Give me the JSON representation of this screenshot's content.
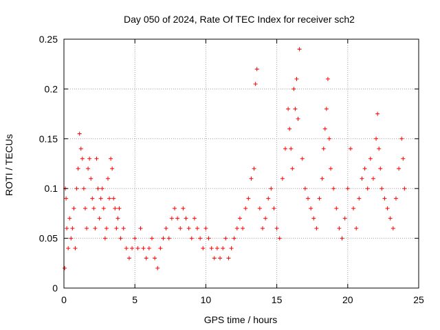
{
  "chart_data": {
    "type": "scatter",
    "title": "Day 050 of 2024, Rate Of TEC Index for receiver sch2",
    "xlabel": "GPS time / hours",
    "ylabel": "ROTI / TECUs",
    "xlim": [
      0,
      25
    ],
    "ylim": [
      0,
      0.25
    ],
    "x_ticks": [
      "0",
      "5",
      "10",
      "15",
      "20",
      "25"
    ],
    "y_ticks": [
      "0",
      "0.05",
      "0.1",
      "0.15",
      "0.2",
      "0.25"
    ],
    "grid": true,
    "marker": "plus",
    "color": "#ff0000",
    "series": [
      {
        "x": [
          0.05,
          0.1,
          0.15,
          0.2,
          0.3,
          0.4,
          0.5,
          0.6,
          0.7,
          0.8,
          0.9,
          1.0,
          1.1,
          1.2,
          1.3,
          1.4,
          1.5,
          1.6,
          1.7,
          1.8,
          1.9,
          2.0,
          2.1,
          2.2,
          2.3,
          2.4,
          2.5,
          2.6,
          2.7,
          2.8,
          2.9,
          3.0,
          3.1,
          3.2,
          3.3,
          3.4,
          3.5,
          3.6,
          3.7,
          3.8,
          3.9,
          4.0,
          4.2,
          4.4,
          4.6,
          4.8,
          5.0,
          5.2,
          5.4,
          5.6,
          5.8,
          6.0,
          6.2,
          6.4,
          6.6,
          6.8,
          7.0,
          7.2,
          7.4,
          7.6,
          7.8,
          8.0,
          8.2,
          8.4,
          8.6,
          8.8,
          9.0,
          9.2,
          9.4,
          9.6,
          9.8,
          10.0,
          10.2,
          10.4,
          10.6,
          10.8,
          11.0,
          11.2,
          11.4,
          11.6,
          11.8,
          12.0,
          12.2,
          12.4,
          12.6,
          12.8,
          13.0,
          13.2,
          13.4,
          13.5,
          13.6,
          13.8,
          14.0,
          14.2,
          14.4,
          14.6,
          14.8,
          15.0,
          15.2,
          15.4,
          15.6,
          15.8,
          15.9,
          16.0,
          16.1,
          16.2,
          16.3,
          16.4,
          16.5,
          16.6,
          16.8,
          17.0,
          17.2,
          17.4,
          17.6,
          17.8,
          18.0,
          18.2,
          18.3,
          18.4,
          18.5,
          18.6,
          18.7,
          18.8,
          19.0,
          19.2,
          19.4,
          19.6,
          19.8,
          20.0,
          20.2,
          20.4,
          20.6,
          20.8,
          21.0,
          21.2,
          21.4,
          21.6,
          21.8,
          22.0,
          22.1,
          22.2,
          22.3,
          22.4,
          22.6,
          22.8,
          23.0,
          23.2,
          23.4,
          23.6,
          23.8,
          23.9,
          24.0
        ],
        "y": [
          0.02,
          0.1,
          0.09,
          0.06,
          0.04,
          0.07,
          0.05,
          0.06,
          0.08,
          0.04,
          0.1,
          0.12,
          0.155,
          0.14,
          0.13,
          0.1,
          0.08,
          0.06,
          0.12,
          0.13,
          0.11,
          0.09,
          0.08,
          0.06,
          0.13,
          0.1,
          0.07,
          0.09,
          0.1,
          0.08,
          0.05,
          0.06,
          0.11,
          0.09,
          0.13,
          0.12,
          0.09,
          0.08,
          0.06,
          0.07,
          0.08,
          0.05,
          0.06,
          0.04,
          0.03,
          0.04,
          0.05,
          0.04,
          0.06,
          0.04,
          0.03,
          0.04,
          0.05,
          0.03,
          0.02,
          0.04,
          0.05,
          0.06,
          0.05,
          0.07,
          0.08,
          0.07,
          0.06,
          0.08,
          0.07,
          0.06,
          0.05,
          0.07,
          0.06,
          0.05,
          0.04,
          0.06,
          0.05,
          0.04,
          0.03,
          0.04,
          0.03,
          0.04,
          0.05,
          0.03,
          0.04,
          0.05,
          0.06,
          0.07,
          0.06,
          0.08,
          0.09,
          0.11,
          0.12,
          0.205,
          0.22,
          0.08,
          0.06,
          0.07,
          0.09,
          0.1,
          0.08,
          0.06,
          0.05,
          0.11,
          0.14,
          0.18,
          0.16,
          0.14,
          0.12,
          0.2,
          0.18,
          0.21,
          0.17,
          0.24,
          0.13,
          0.1,
          0.09,
          0.08,
          0.07,
          0.06,
          0.09,
          0.11,
          0.14,
          0.16,
          0.18,
          0.21,
          0.15,
          0.12,
          0.1,
          0.08,
          0.06,
          0.05,
          0.07,
          0.1,
          0.14,
          0.08,
          0.06,
          0.09,
          0.11,
          0.12,
          0.1,
          0.13,
          0.11,
          0.15,
          0.175,
          0.14,
          0.12,
          0.1,
          0.09,
          0.08,
          0.07,
          0.06,
          0.09,
          0.12,
          0.15,
          0.13,
          0.1
        ]
      }
    ]
  }
}
